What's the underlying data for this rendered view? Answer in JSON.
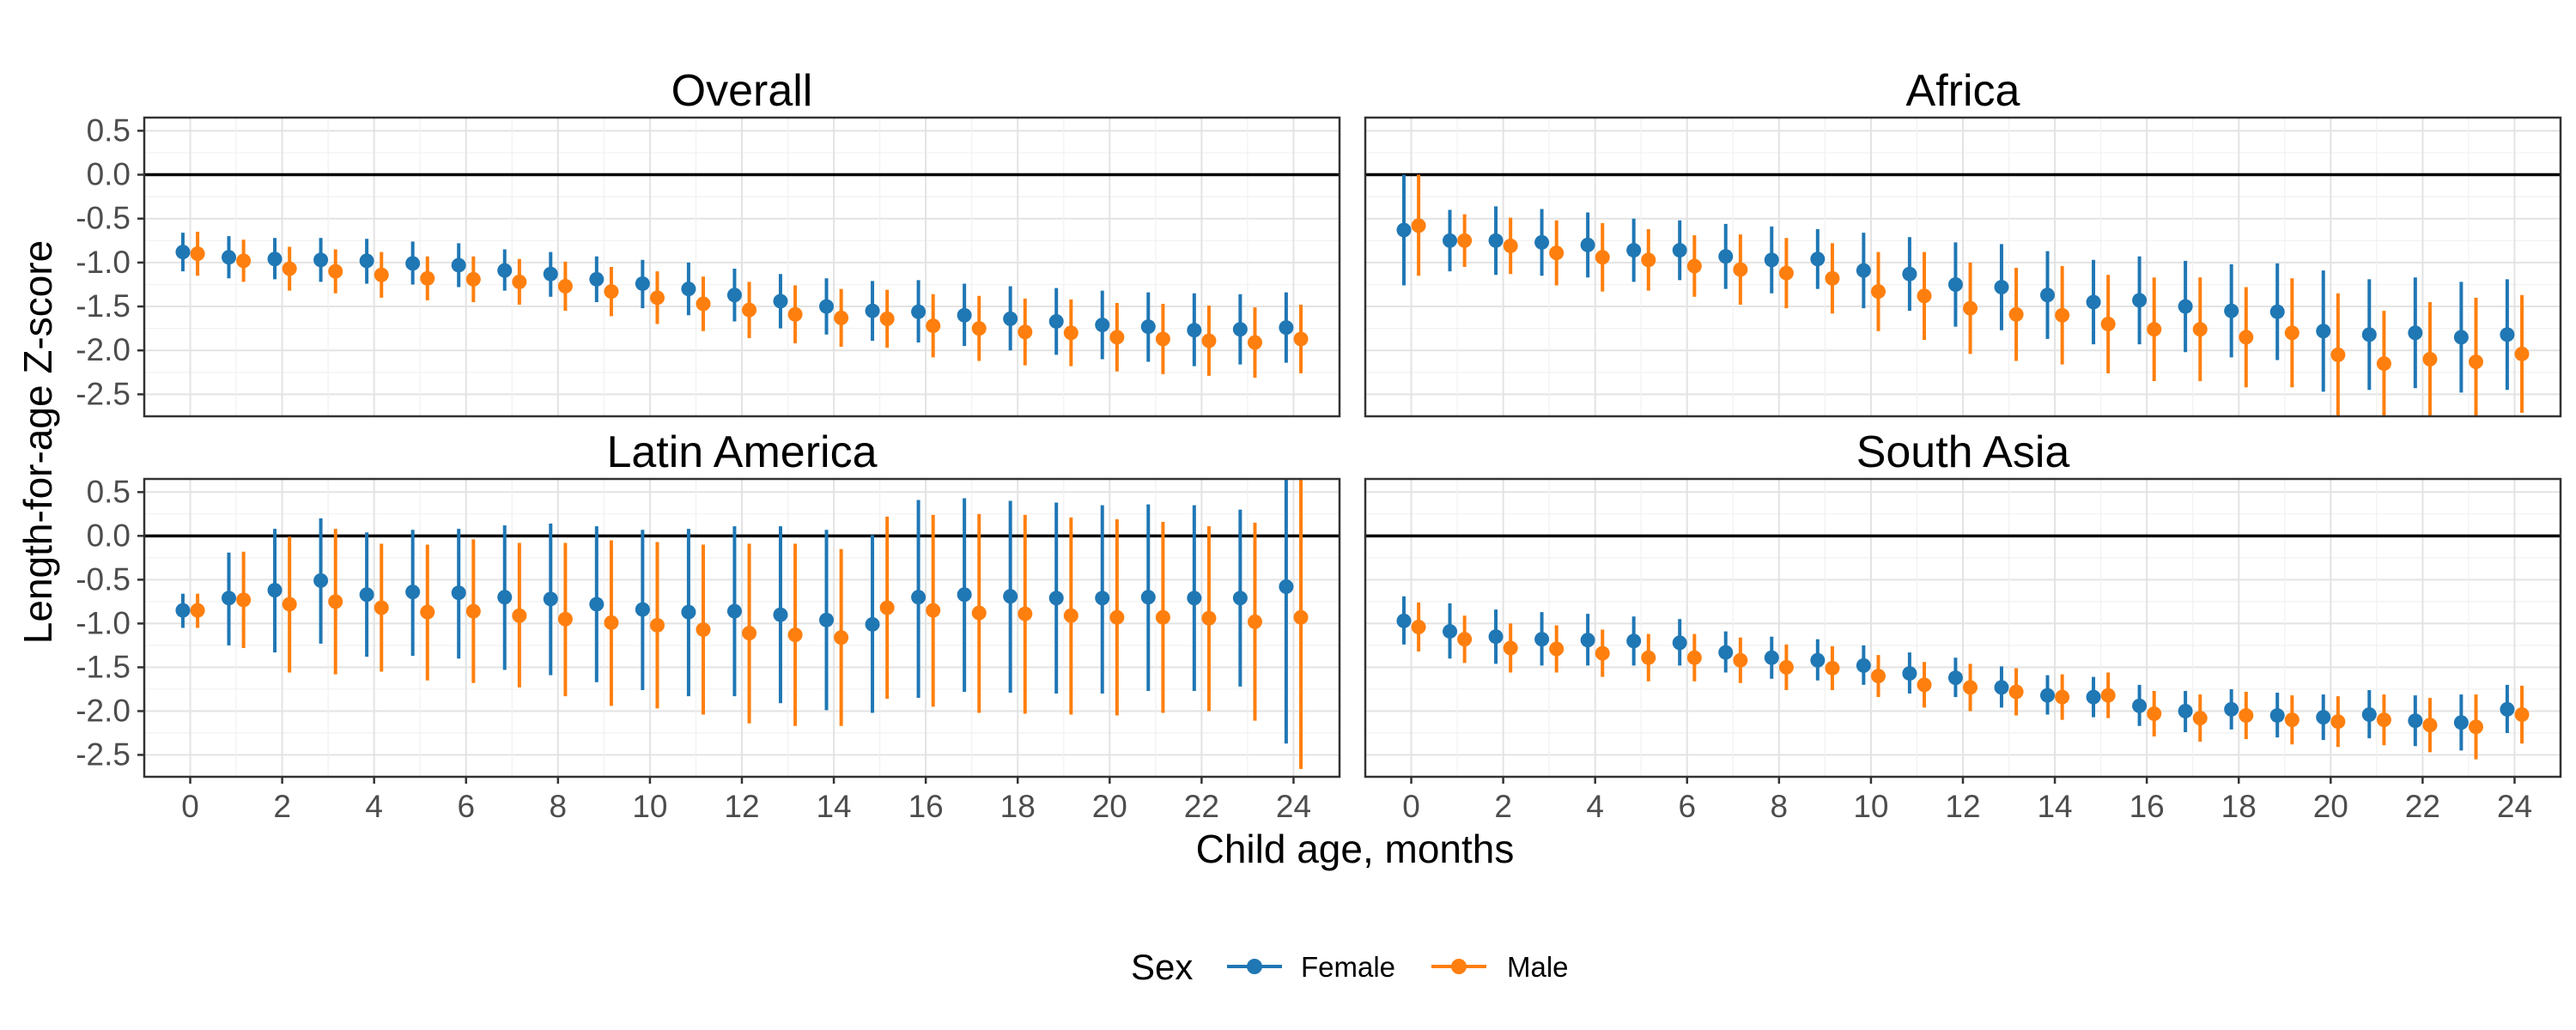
{
  "chart_data": {
    "type": "scatter",
    "subtype": "point-range faceted",
    "xlabel": "Child age, months",
    "ylabel": "Length-for-age Z-score",
    "xlim": [
      -1,
      25
    ],
    "ylim": [
      -2.75,
      0.65
    ],
    "x_ticks": [
      0,
      2,
      4,
      6,
      8,
      10,
      12,
      14,
      16,
      18,
      20,
      22,
      24
    ],
    "y_ticks": [
      0.5,
      0.0,
      -0.5,
      -1.0,
      -1.5,
      -2.0,
      -2.5
    ],
    "y_tick_labels": [
      "0.5",
      "0.0",
      "-0.5",
      "-1.0",
      "-1.5",
      "-2.0",
      "-2.5"
    ],
    "grid": true,
    "reference_line_y": 0,
    "legend": {
      "title": "Sex",
      "position": "bottom",
      "entries": [
        {
          "label": "Female",
          "color": "#1f77b4"
        },
        {
          "label": "Male",
          "color": "#ff7f0e"
        }
      ]
    },
    "series_colors": {
      "Female": "#1f77b4",
      "Male": "#ff7f0e"
    },
    "panels": [
      {
        "title": "Overall",
        "series": [
          {
            "name": "Female",
            "y": [
              -0.88,
              -0.94,
              -0.96,
              -0.97,
              -0.98,
              -1.01,
              -1.03,
              -1.09,
              -1.13,
              -1.19,
              -1.24,
              -1.3,
              -1.37,
              -1.44,
              -1.5,
              -1.55,
              -1.56,
              -1.6,
              -1.64,
              -1.67,
              -1.71,
              -1.73,
              -1.77,
              -1.76,
              -1.74
            ],
            "lo": [
              -1.1,
              -1.18,
              -1.19,
              -1.22,
              -1.24,
              -1.25,
              -1.28,
              -1.32,
              -1.39,
              -1.45,
              -1.52,
              -1.6,
              -1.67,
              -1.75,
              -1.82,
              -1.89,
              -1.91,
              -1.95,
              -2.0,
              -2.05,
              -2.1,
              -2.13,
              -2.18,
              -2.16,
              -2.14
            ],
            "hi": [
              -0.66,
              -0.7,
              -0.72,
              -0.72,
              -0.73,
              -0.76,
              -0.78,
              -0.85,
              -0.88,
              -0.93,
              -0.97,
              -1.0,
              -1.07,
              -1.13,
              -1.18,
              -1.21,
              -1.2,
              -1.24,
              -1.27,
              -1.29,
              -1.32,
              -1.34,
              -1.35,
              -1.36,
              -1.34
            ]
          },
          {
            "name": "Male",
            "y": [
              -0.9,
              -0.98,
              -1.07,
              -1.1,
              -1.14,
              -1.18,
              -1.19,
              -1.22,
              -1.27,
              -1.33,
              -1.4,
              -1.47,
              -1.54,
              -1.59,
              -1.63,
              -1.64,
              -1.72,
              -1.75,
              -1.79,
              -1.8,
              -1.85,
              -1.87,
              -1.89,
              -1.91,
              -1.87
            ],
            "lo": [
              -1.15,
              -1.22,
              -1.32,
              -1.35,
              -1.4,
              -1.43,
              -1.45,
              -1.48,
              -1.55,
              -1.61,
              -1.7,
              -1.78,
              -1.86,
              -1.92,
              -1.96,
              -1.97,
              -2.08,
              -2.12,
              -2.17,
              -2.18,
              -2.24,
              -2.27,
              -2.29,
              -2.31,
              -2.26
            ],
            "hi": [
              -0.65,
              -0.74,
              -0.82,
              -0.85,
              -0.88,
              -0.93,
              -0.93,
              -0.96,
              -0.99,
              -1.05,
              -1.1,
              -1.16,
              -1.22,
              -1.26,
              -1.3,
              -1.31,
              -1.36,
              -1.38,
              -1.41,
              -1.42,
              -1.46,
              -1.47,
              -1.49,
              -1.51,
              -1.48
            ]
          }
        ]
      },
      {
        "title": "Africa",
        "series": [
          {
            "name": "Female",
            "y": [
              -0.63,
              -0.75,
              -0.75,
              -0.77,
              -0.8,
              -0.86,
              -0.86,
              -0.93,
              -0.97,
              -0.96,
              -1.09,
              -1.13,
              -1.25,
              -1.28,
              -1.37,
              -1.45,
              -1.43,
              -1.5,
              -1.55,
              -1.56,
              -1.78,
              -1.82,
              -1.8,
              -1.85,
              -1.82
            ],
            "lo": [
              -1.26,
              -1.1,
              -1.14,
              -1.15,
              -1.17,
              -1.22,
              -1.2,
              -1.3,
              -1.35,
              -1.3,
              -1.52,
              -1.55,
              -1.73,
              -1.77,
              -1.87,
              -1.93,
              -1.93,
              -2.02,
              -2.08,
              -2.11,
              -2.47,
              -2.45,
              -2.43,
              -2.48,
              -2.45
            ],
            "hi": [
              0.0,
              -0.4,
              -0.36,
              -0.39,
              -0.43,
              -0.5,
              -0.52,
              -0.56,
              -0.59,
              -0.62,
              -0.66,
              -0.71,
              -0.77,
              -0.79,
              -0.87,
              -0.97,
              -0.93,
              -0.98,
              -1.02,
              -1.01,
              -1.09,
              -1.19,
              -1.17,
              -1.22,
              -1.19
            ]
          },
          {
            "name": "Male",
            "y": [
              -0.58,
              -0.75,
              -0.81,
              -0.89,
              -0.94,
              -0.97,
              -1.04,
              -1.08,
              -1.12,
              -1.18,
              -1.33,
              -1.38,
              -1.52,
              -1.59,
              -1.6,
              -1.7,
              -1.76,
              -1.76,
              -1.85,
              -1.8,
              -2.05,
              -2.15,
              -2.1,
              -2.13,
              -2.04
            ],
            "lo": [
              -1.15,
              -1.05,
              -1.13,
              -1.26,
              -1.33,
              -1.32,
              -1.39,
              -1.48,
              -1.52,
              -1.58,
              -1.78,
              -1.88,
              -2.04,
              -2.12,
              -2.16,
              -2.26,
              -2.35,
              -2.35,
              -2.42,
              -2.42,
              -2.75,
              -2.75,
              -2.75,
              -2.75,
              -2.71
            ],
            "hi": [
              0.0,
              -0.45,
              -0.49,
              -0.52,
              -0.55,
              -0.62,
              -0.69,
              -0.68,
              -0.72,
              -0.78,
              -0.88,
              -0.88,
              -1.0,
              -1.06,
              -1.04,
              -1.14,
              -1.17,
              -1.17,
              -1.28,
              -1.18,
              -1.35,
              -1.55,
              -1.45,
              -1.4,
              -1.37
            ]
          }
        ]
      },
      {
        "title": "Latin America",
        "series": [
          {
            "name": "Female",
            "y": [
              -0.85,
              -0.71,
              -0.62,
              -0.51,
              -0.67,
              -0.64,
              -0.65,
              -0.7,
              -0.72,
              -0.78,
              -0.84,
              -0.87,
              -0.86,
              -0.9,
              -0.96,
              -1.01,
              -0.7,
              -0.67,
              -0.69,
              -0.71,
              -0.71,
              -0.7,
              -0.71,
              -0.71,
              -0.58
            ],
            "lo": [
              -1.05,
              -1.25,
              -1.33,
              -1.23,
              -1.38,
              -1.37,
              -1.4,
              -1.53,
              -1.59,
              -1.67,
              -1.76,
              -1.83,
              -1.83,
              -1.91,
              -1.99,
              -2.02,
              -1.85,
              -1.78,
              -1.79,
              -1.8,
              -1.8,
              -1.77,
              -1.77,
              -1.72,
              -2.37
            ],
            "hi": [
              -0.66,
              -0.19,
              0.08,
              0.2,
              0.04,
              0.07,
              0.08,
              0.12,
              0.14,
              0.11,
              0.07,
              0.08,
              0.11,
              0.11,
              0.07,
              0.01,
              0.41,
              0.43,
              0.4,
              0.38,
              0.35,
              0.36,
              0.35,
              0.3,
              0.65
            ]
          },
          {
            "name": "Male",
            "y": [
              -0.85,
              -0.73,
              -0.78,
              -0.75,
              -0.82,
              -0.87,
              -0.86,
              -0.91,
              -0.95,
              -0.99,
              -1.02,
              -1.07,
              -1.11,
              -1.13,
              -1.16,
              -0.82,
              -0.85,
              -0.88,
              -0.89,
              -0.91,
              -0.93,
              -0.93,
              -0.94,
              -0.98,
              -0.93
            ],
            "lo": [
              -1.05,
              -1.28,
              -1.56,
              -1.58,
              -1.55,
              -1.65,
              -1.68,
              -1.73,
              -1.83,
              -1.94,
              -1.97,
              -2.04,
              -2.14,
              -2.17,
              -2.17,
              -1.86,
              -1.95,
              -2.02,
              -2.03,
              -2.04,
              -2.05,
              -2.02,
              -2.0,
              -2.11,
              -2.66
            ],
            "hi": [
              -0.66,
              -0.18,
              -0.01,
              0.08,
              -0.09,
              -0.1,
              -0.04,
              -0.08,
              -0.08,
              -0.05,
              -0.07,
              -0.1,
              -0.09,
              -0.09,
              -0.15,
              0.22,
              0.24,
              0.25,
              0.24,
              0.21,
              0.19,
              0.16,
              0.11,
              0.15,
              0.65
            ]
          }
        ]
      },
      {
        "title": "South Asia",
        "series": [
          {
            "name": "Female",
            "y": [
              -0.97,
              -1.09,
              -1.15,
              -1.18,
              -1.19,
              -1.2,
              -1.22,
              -1.33,
              -1.39,
              -1.42,
              -1.48,
              -1.57,
              -1.62,
              -1.73,
              -1.82,
              -1.84,
              -1.94,
              -2.0,
              -1.98,
              -2.05,
              -2.07,
              -2.04,
              -2.11,
              -2.13,
              -1.98
            ],
            "lo": [
              -1.24,
              -1.4,
              -1.46,
              -1.48,
              -1.48,
              -1.48,
              -1.48,
              -1.56,
              -1.63,
              -1.65,
              -1.7,
              -1.8,
              -1.84,
              -1.96,
              -2.04,
              -2.07,
              -2.17,
              -2.24,
              -2.21,
              -2.3,
              -2.33,
              -2.31,
              -2.4,
              -2.45,
              -2.25
            ],
            "hi": [
              -0.69,
              -0.77,
              -0.84,
              -0.87,
              -0.89,
              -0.92,
              -0.95,
              -1.09,
              -1.15,
              -1.18,
              -1.25,
              -1.33,
              -1.39,
              -1.49,
              -1.59,
              -1.61,
              -1.7,
              -1.77,
              -1.75,
              -1.79,
              -1.81,
              -1.76,
              -1.82,
              -1.81,
              -1.7
            ]
          },
          {
            "name": "Male",
            "y": [
              -1.04,
              -1.18,
              -1.28,
              -1.29,
              -1.34,
              -1.39,
              -1.39,
              -1.42,
              -1.5,
              -1.51,
              -1.6,
              -1.7,
              -1.73,
              -1.78,
              -1.84,
              -1.82,
              -2.03,
              -2.08,
              -2.05,
              -2.1,
              -2.12,
              -2.1,
              -2.16,
              -2.18,
              -2.04
            ],
            "lo": [
              -1.32,
              -1.45,
              -1.56,
              -1.56,
              -1.61,
              -1.66,
              -1.66,
              -1.68,
              -1.76,
              -1.76,
              -1.84,
              -1.96,
              -2.0,
              -2.05,
              -2.1,
              -2.08,
              -2.29,
              -2.35,
              -2.32,
              -2.38,
              -2.41,
              -2.39,
              -2.47,
              -2.55,
              -2.37
            ],
            "hi": [
              -0.76,
              -0.91,
              -1.0,
              -1.02,
              -1.07,
              -1.12,
              -1.12,
              -1.16,
              -1.24,
              -1.26,
              -1.36,
              -1.44,
              -1.46,
              -1.51,
              -1.58,
              -1.56,
              -1.77,
              -1.81,
              -1.78,
              -1.82,
              -1.83,
              -1.81,
              -1.85,
              -1.81,
              -1.71
            ]
          }
        ]
      }
    ]
  }
}
